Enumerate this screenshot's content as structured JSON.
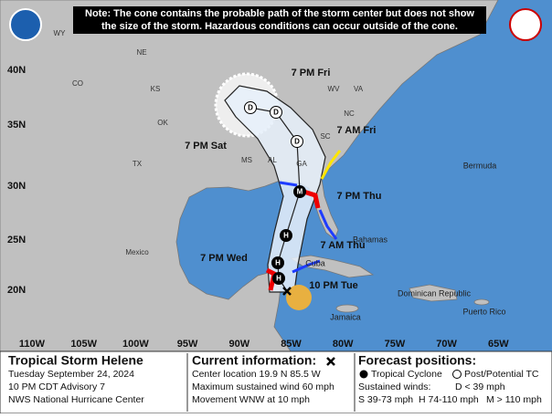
{
  "note": [
    "Note: The cone contains the probable path of the storm center but does not show",
    "the size of the storm. Hazardous conditions can occur outside of the cone."
  ],
  "latitudes": [
    "40N",
    "35N",
    "30N",
    "25N",
    "20N"
  ],
  "longitudes": [
    "110W",
    "105W",
    "100W",
    "95W",
    "90W",
    "85W",
    "80W",
    "75W",
    "70W",
    "65W"
  ],
  "places": [
    "WY",
    "NE",
    "CO",
    "KS",
    "OK",
    "TX",
    "Mexico",
    "MS",
    "AL",
    "GA",
    "SC",
    "NC",
    "VA",
    "WV",
    "Bermuda",
    "Cuba",
    "Bahamas",
    "Jamaica",
    "Dominican Republic",
    "Puerto Rico"
  ],
  "forecast_points": [
    {
      "time": "10 PM Tue"
    },
    {
      "time": "7 PM Wed",
      "letter": "H"
    },
    {
      "letter": "H"
    },
    {
      "time": "7 AM Thu",
      "letter": "H"
    },
    {
      "time": "7 PM Thu",
      "letter": "M"
    },
    {
      "time": "7 AM Fri",
      "letter": "D"
    },
    {
      "time": "7 PM Fri",
      "letter": "D"
    },
    {
      "time": "7 PM Sat",
      "letter": "D"
    }
  ],
  "panel": {
    "storm_name": "Tropical Storm Helene",
    "date": "Tuesday September 24, 2024",
    "advisory": "10 PM CDT Advisory 7",
    "center": "NWS National Hurricane Center",
    "current": {
      "heading": "Current information:",
      "lines": [
        "Center location 19.9 N 85.5 W",
        "Maximum sustained wind 60 mph",
        "Movement WNW at 10 mph"
      ]
    },
    "forecast": {
      "heading": "Forecast positions:",
      "tropical_cyclone": "Tropical Cyclone",
      "post_tc": "Post/Potential TC",
      "winds_heading": "Sustained winds:",
      "winds": [
        "D < 39 mph",
        "S 39-73 mph",
        "H 74-110 mph",
        "M > 110 mph"
      ]
    }
  }
}
